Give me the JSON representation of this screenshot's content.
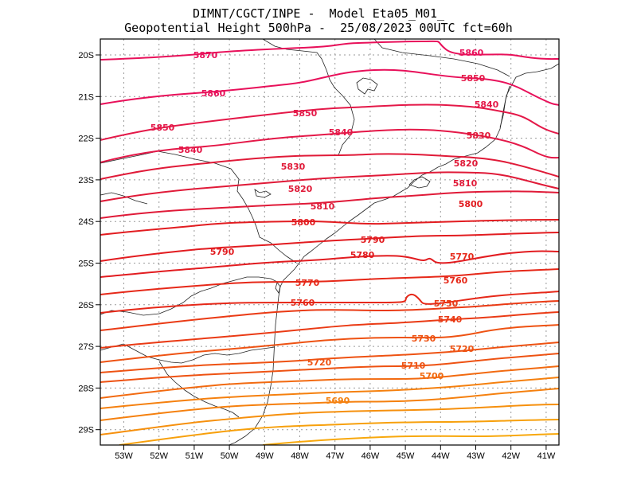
{
  "header": {
    "line1": "DIMNT/CGCT/INPE -  Model Eta05_M01_",
    "line2": "Geopotential Height 500hPa -  25/08/2023 00UTC fct=60h"
  },
  "map": {
    "lon_ticks": [
      "53W",
      "52W",
      "51W",
      "50W",
      "49W",
      "48W",
      "47W",
      "46W",
      "45W",
      "44W",
      "43W",
      "42W",
      "41W"
    ],
    "lat_ticks": [
      "20S",
      "21S",
      "22S",
      "23S",
      "24S",
      "25S",
      "26S",
      "27S",
      "28S",
      "29S"
    ],
    "contour_labels": [
      {
        "text": "5870",
        "color": "#e8105a"
      },
      {
        "text": "5860",
        "color": "#e8105a"
      },
      {
        "text": "5860",
        "color": "#e8105a"
      },
      {
        "text": "5850",
        "color": "#e41848"
      },
      {
        "text": "5850",
        "color": "#e41848"
      },
      {
        "text": "5850",
        "color": "#e41848"
      },
      {
        "text": "5840",
        "color": "#e41848"
      },
      {
        "text": "5840",
        "color": "#e41848"
      },
      {
        "text": "5840",
        "color": "#e41848"
      },
      {
        "text": "5830",
        "color": "#e01a38"
      },
      {
        "text": "5830",
        "color": "#e01a38"
      },
      {
        "text": "5820",
        "color": "#e01a38"
      },
      {
        "text": "5820",
        "color": "#e01a38"
      },
      {
        "text": "5810",
        "color": "#e01a38"
      },
      {
        "text": "5810",
        "color": "#e01a38"
      },
      {
        "text": "5800",
        "color": "#e21c20"
      },
      {
        "text": "5800",
        "color": "#e21c20"
      },
      {
        "text": "5790",
        "color": "#e21c20"
      },
      {
        "text": "5790",
        "color": "#e21c20"
      },
      {
        "text": "5780",
        "color": "#e21c20"
      },
      {
        "text": "5770",
        "color": "#e62818"
      },
      {
        "text": "5770",
        "color": "#e62818"
      },
      {
        "text": "5760",
        "color": "#e62818"
      },
      {
        "text": "5760",
        "color": "#e62818"
      },
      {
        "text": "5750",
        "color": "#ea3a14"
      },
      {
        "text": "5740",
        "color": "#ea3a14"
      },
      {
        "text": "5730",
        "color": "#ee5212"
      },
      {
        "text": "5720",
        "color": "#ee5212"
      },
      {
        "text": "5720",
        "color": "#ee5212"
      },
      {
        "text": "5710",
        "color": "#ee5212"
      },
      {
        "text": "5700",
        "color": "#f26a10"
      },
      {
        "text": "5690",
        "color": "#f5800e"
      }
    ]
  }
}
